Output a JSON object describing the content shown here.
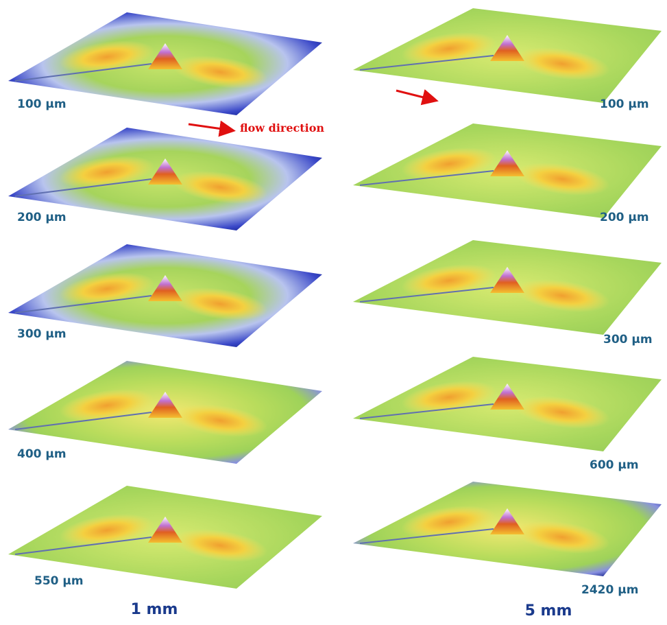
{
  "columns": [
    {
      "title": "1 mm",
      "panels": [
        "100 μm",
        "200 μm",
        "300 μm",
        "400 μm",
        "550 μm"
      ]
    },
    {
      "title": "5 mm",
      "panels": [
        "100 μm",
        "200 μm",
        "300 μm",
        "600 μm",
        "2420 μm"
      ]
    }
  ],
  "annotation": "flow direction"
}
